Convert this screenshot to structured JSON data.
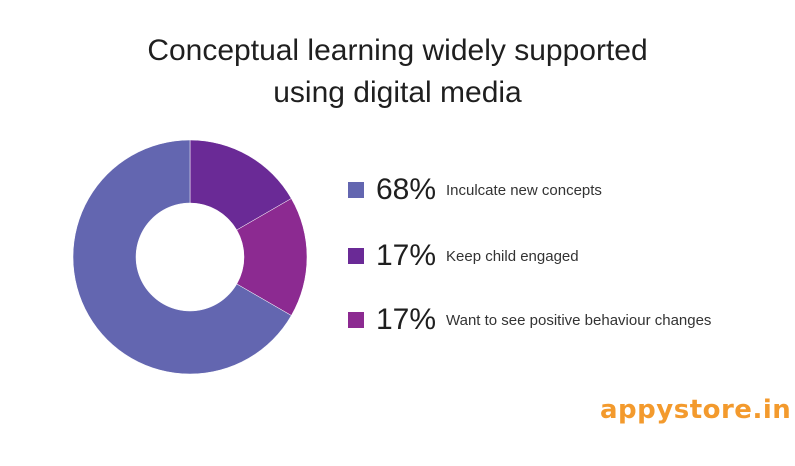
{
  "chart_data": {
    "type": "pie",
    "title": "Conceptual learning widely supported using digital media",
    "title_lines": [
      "Conceptual learning widely supported",
      "using digital media"
    ],
    "donut": true,
    "slices": [
      {
        "label": "Inculcate new concepts",
        "value": 68,
        "display": "68%",
        "color": "#6366b0"
      },
      {
        "label": "Keep child engaged",
        "value": 17,
        "display": "17%",
        "color": "#6a2a96"
      },
      {
        "label": "Want to see positive behaviour changes",
        "value": 17,
        "display": "17%",
        "color": "#8c2a91"
      }
    ],
    "legend_position": "right"
  },
  "brand": {
    "logo_text": "appystore.in"
  }
}
